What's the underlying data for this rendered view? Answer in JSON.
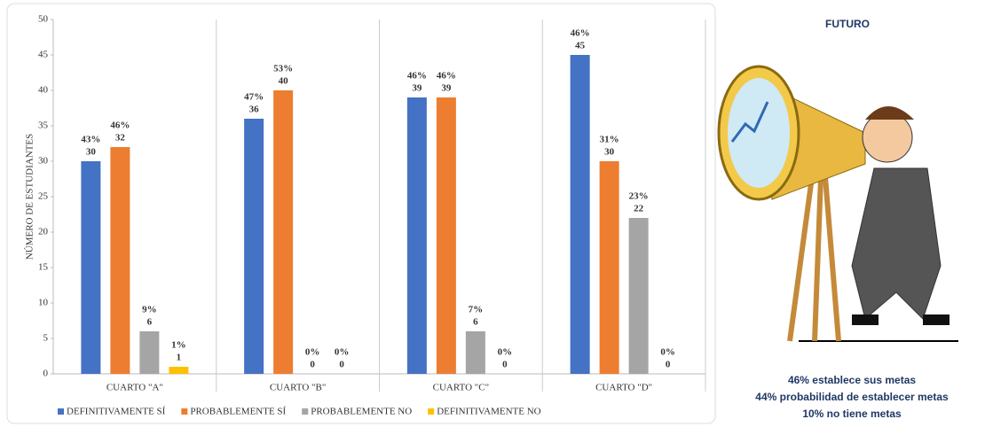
{
  "chart_data": {
    "type": "bar",
    "y_label": "NÚMERO DE ESTUDIANTES",
    "categories": [
      "CUARTO \"A\"",
      "CUARTO \"B\"",
      "CUARTO \"C\"",
      "CUARTO \"D\""
    ],
    "series": [
      {
        "name": "DEFINITIVAMENTE SÍ",
        "color": "#4472c4",
        "values": [
          30,
          36,
          39,
          45
        ],
        "percent_labels": [
          "43%",
          "47%",
          "46%",
          "46%"
        ]
      },
      {
        "name": "PROBABLEMENTE SÍ",
        "color": "#ed7d31",
        "values": [
          32,
          40,
          39,
          30
        ],
        "percent_labels": [
          "46%",
          "53%",
          "46%",
          "31%"
        ]
      },
      {
        "name": "PROBABLEMENTE NO",
        "color": "#a5a5a5",
        "values": [
          6,
          0,
          6,
          22
        ],
        "percent_labels": [
          "9%",
          "0%",
          "7%",
          "23%"
        ]
      },
      {
        "name": "DEFINITIVAMENTE NO",
        "color": "#ffc000",
        "values": [
          1,
          0,
          0,
          0
        ],
        "percent_labels": [
          "1%",
          "0%",
          "0%",
          "0%"
        ]
      }
    ],
    "ylim": [
      0,
      50
    ],
    "yticks": [
      0,
      5,
      10,
      15,
      20,
      25,
      30,
      35,
      40,
      45,
      50
    ],
    "legend": "bottom"
  },
  "infographic": {
    "title": "FUTURO",
    "lines": [
      "46% establece sus metas",
      "44%  probabilidad de establecer metas",
      "10% no tiene metas"
    ]
  }
}
